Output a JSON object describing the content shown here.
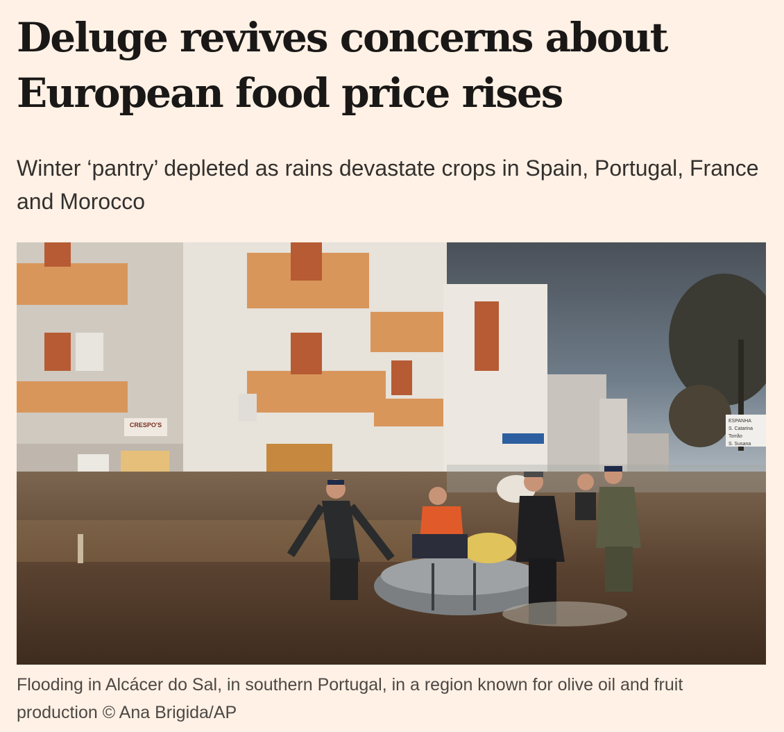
{
  "article": {
    "headline": "Deluge revives concerns about European food price rises",
    "standfirst": "Winter ‘pantry’ depleted as rains devastate crops in Spain, Portugal, France and Morocco",
    "image": {
      "caption": "Flooding in Alcácer do Sal, in southern Portugal, in a region known for olive oil and fruit production © Ana Brigida/AP",
      "sign_text": "CRESPO'S",
      "road_sign_lines": [
        "ESPANHA",
        "S. Catarina",
        "Torrão",
        "S. Susana"
      ]
    }
  },
  "colors": {
    "background": "#fff1e5",
    "text": "#1a1817"
  }
}
